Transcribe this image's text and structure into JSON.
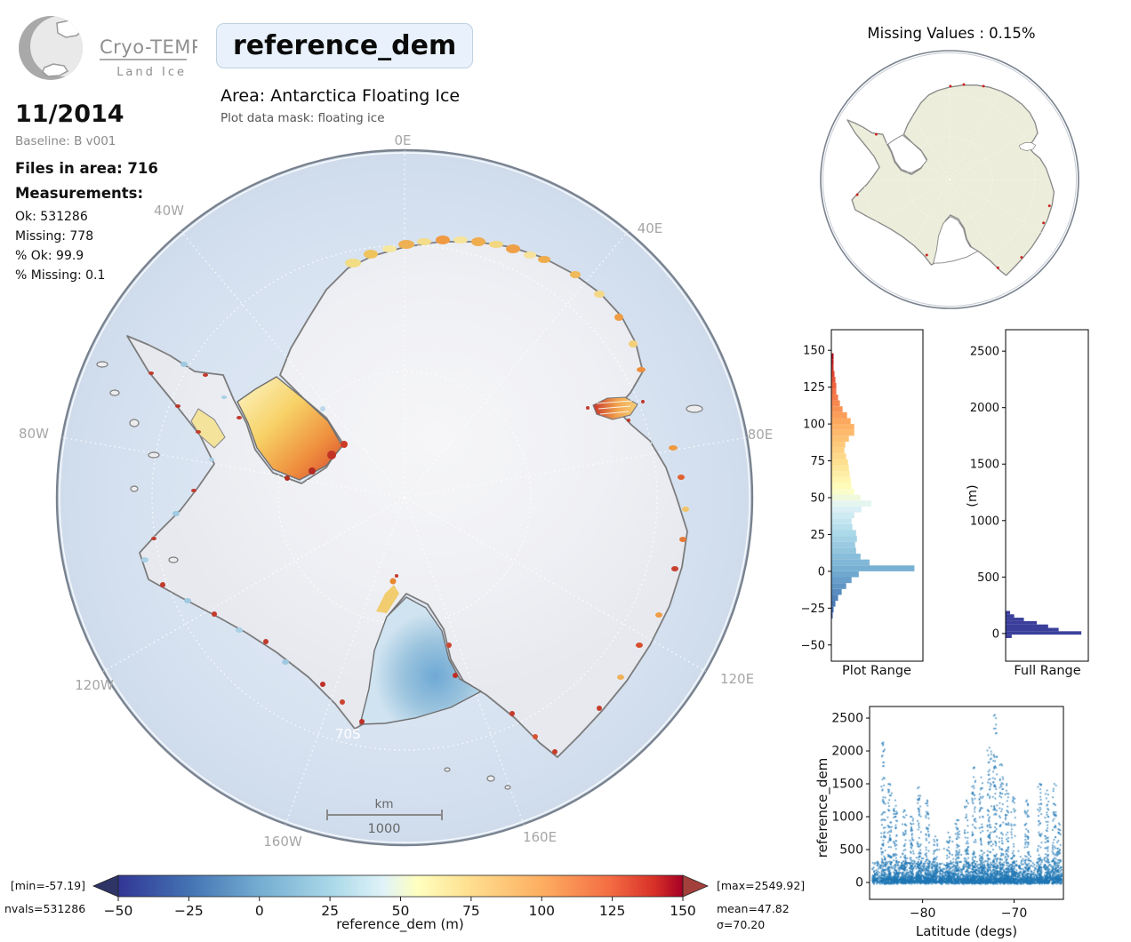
{
  "logo": {
    "title": "Cryo-TEMPO",
    "subtitle": "Land Ice"
  },
  "header": {
    "variable": "reference_dem",
    "area": "Area: Antarctica Floating Ice",
    "mask": "Plot data mask: floating ice"
  },
  "info_panel": {
    "date": "11/2014",
    "baseline": "Baseline: B v001",
    "files": "Files in area: 716",
    "measurements_heading": "Measurements:",
    "stats": [
      "Ok: 531286",
      "Missing: 778",
      "% Ok: 99.9",
      "% Missing: 0.1"
    ]
  },
  "main_map": {
    "graticule_labels": [
      "0E",
      "40E",
      "80E",
      "120E",
      "160E",
      "160W",
      "120W",
      "80W",
      "40W"
    ],
    "latitude_label": "70S",
    "scalebar": {
      "unit": "km",
      "value": "1000"
    },
    "ocean_color": "#d9e4f1",
    "land_color": "#f0f1f5",
    "coast_color": "#7c7c7c",
    "regions": [
      {
        "name": "ronne-filchner-shelf",
        "palette": "yellow-orange-red"
      },
      {
        "name": "ross-shelf",
        "palette": "blue"
      },
      {
        "name": "amery-shelf",
        "palette": "orange-red"
      },
      {
        "name": "larsen-shelf",
        "palette": "pale-yellow"
      }
    ]
  },
  "mini_map": {
    "title": "Missing Values : 0.15%",
    "land_color": "#ecedda",
    "coast_color": "#8a8a8a"
  },
  "chart_data": [
    {
      "id": "plot_range_hist",
      "type": "bar",
      "orientation": "horizontal",
      "title": "Plot Range",
      "ylim": [
        -61,
        164
      ],
      "yticks": [
        150,
        125,
        100,
        75,
        50,
        25,
        0,
        -25,
        -50
      ],
      "bin_height": 4,
      "color_by": "colormap",
      "colormap_range": [
        -50,
        150
      ],
      "bins": [
        [
          -30,
          1
        ],
        [
          -26,
          2
        ],
        [
          -22,
          4
        ],
        [
          -18,
          7
        ],
        [
          -14,
          11
        ],
        [
          -10,
          16
        ],
        [
          -6,
          22
        ],
        [
          -2,
          30
        ],
        [
          2,
          92
        ],
        [
          6,
          42
        ],
        [
          10,
          32
        ],
        [
          14,
          27
        ],
        [
          18,
          26
        ],
        [
          22,
          28
        ],
        [
          26,
          27
        ],
        [
          30,
          23
        ],
        [
          34,
          22
        ],
        [
          38,
          25
        ],
        [
          42,
          33
        ],
        [
          46,
          44
        ],
        [
          50,
          32
        ],
        [
          54,
          25
        ],
        [
          58,
          22
        ],
        [
          62,
          21
        ],
        [
          66,
          20
        ],
        [
          70,
          19
        ],
        [
          74,
          18
        ],
        [
          78,
          16
        ],
        [
          82,
          14
        ],
        [
          86,
          15
        ],
        [
          90,
          19
        ],
        [
          94,
          25
        ],
        [
          98,
          25
        ],
        [
          102,
          21
        ],
        [
          106,
          17
        ],
        [
          110,
          12
        ],
        [
          114,
          9
        ],
        [
          118,
          7
        ],
        [
          122,
          5
        ],
        [
          126,
          5
        ],
        [
          130,
          4
        ],
        [
          134,
          3
        ],
        [
          138,
          2
        ],
        [
          142,
          2
        ],
        [
          146,
          2
        ]
      ]
    },
    {
      "id": "full_range_hist",
      "type": "bar",
      "orientation": "horizontal",
      "title": "Full Range",
      "ylabel": "(m)",
      "ylim": [
        -245,
        2690
      ],
      "yticks": [
        2500,
        2000,
        1500,
        1000,
        500,
        0
      ],
      "bin_height": 30,
      "color": "#3b3f9b",
      "bins": [
        [
          -25,
          7
        ],
        [
          5,
          93
        ],
        [
          35,
          65
        ],
        [
          65,
          52
        ],
        [
          95,
          38
        ],
        [
          125,
          22
        ],
        [
          155,
          10
        ],
        [
          185,
          5
        ]
      ]
    },
    {
      "id": "lat_scatter",
      "type": "scatter",
      "xlabel": "Latitude (degs)",
      "ylabel": "reference_dem",
      "xlim": [
        -85.8,
        -64.6
      ],
      "ylim": [
        -257,
        2676
      ],
      "xticks": [
        -80,
        -70
      ],
      "yticks": [
        0,
        500,
        1000,
        1500,
        2000,
        2500
      ],
      "point_color": "#1f77b4",
      "base_band": {
        "n": 2600,
        "y_max": 300
      },
      "spikes": [
        [
          -84.3,
          2130
        ],
        [
          -83.6,
          1500
        ],
        [
          -83.0,
          1250
        ],
        [
          -82.0,
          1100
        ],
        [
          -81.2,
          1000
        ],
        [
          -80.4,
          1450
        ],
        [
          -79.5,
          1250
        ],
        [
          -78.6,
          700
        ],
        [
          -77.2,
          760
        ],
        [
          -76.2,
          950
        ],
        [
          -75.2,
          1250
        ],
        [
          -74.4,
          1750
        ],
        [
          -73.6,
          1600
        ],
        [
          -72.7,
          2050
        ],
        [
          -72.1,
          2550
        ],
        [
          -71.4,
          1800
        ],
        [
          -70.8,
          1500
        ],
        [
          -70.1,
          1300
        ],
        [
          -68.6,
          1250
        ],
        [
          -67.2,
          1500
        ],
        [
          -66.4,
          1400
        ],
        [
          -65.6,
          1500
        ],
        [
          -65.1,
          900
        ]
      ]
    },
    {
      "id": "colorbar",
      "type": "colorbar",
      "label": "reference_dem (m)",
      "ticks": [
        -50,
        -25,
        0,
        25,
        50,
        75,
        100,
        125,
        150
      ],
      "range": [
        -50,
        150
      ],
      "annotations": {
        "min": "[min=-57.19]",
        "max": "[max=2549.92]",
        "nvals": "nvals=531286",
        "mean": "mean=47.82",
        "sigma": "σ=70.20"
      },
      "under_color": "#2e3566",
      "over_color": "#a4403b",
      "colormap": [
        [
          0,
          "#313695"
        ],
        [
          0.13,
          "#4575b4"
        ],
        [
          0.25,
          "#74add1"
        ],
        [
          0.38,
          "#abd9e9"
        ],
        [
          0.47,
          "#e0f3f8"
        ],
        [
          0.53,
          "#ffffbf"
        ],
        [
          0.62,
          "#fee090"
        ],
        [
          0.75,
          "#fdae61"
        ],
        [
          0.87,
          "#f46d43"
        ],
        [
          0.95,
          "#d73027"
        ],
        [
          1,
          "#a50026"
        ]
      ]
    }
  ]
}
